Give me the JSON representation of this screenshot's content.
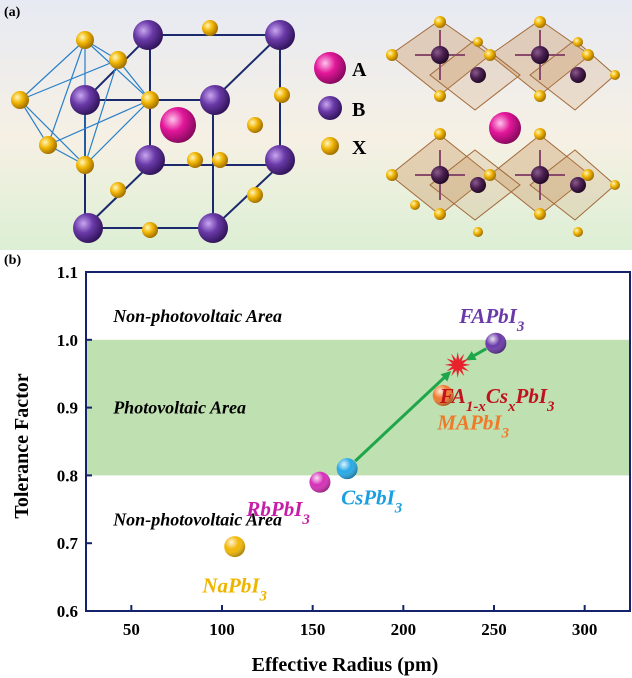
{
  "panel_a": {
    "label": "(a)",
    "legend": [
      {
        "symbol": "A",
        "color": "#e3179a"
      },
      {
        "symbol": "B",
        "color": "#6a3aa8"
      },
      {
        "symbol": "X",
        "color": "#f2b705"
      }
    ]
  },
  "panel_b_label": "(b)",
  "chart_data": {
    "type": "scatter",
    "xlabel": "Effective Radius (pm)",
    "ylabel": "Tolerance Factor",
    "xlim": [
      25,
      325
    ],
    "ylim": [
      0.6,
      1.1
    ],
    "xticks": [
      50,
      100,
      150,
      200,
      250,
      300
    ],
    "yticks": [
      0.6,
      0.7,
      0.8,
      0.9,
      1.0,
      1.1
    ],
    "xtick_labels": [
      "50",
      "100",
      "150",
      "200",
      "250",
      "300"
    ],
    "ytick_labels": [
      "0.6",
      "0.7",
      "0.8",
      "0.9",
      "1.0",
      "1.1"
    ],
    "bands": [
      {
        "label": "Photovoltaic Area",
        "from": 0.8,
        "to": 1.0,
        "color": "#bfe0b0"
      }
    ],
    "annotations": [
      {
        "text": "Non-photovoltaic Area",
        "x": 0.05,
        "y": 1.035
      },
      {
        "text": "Photovoltaic Area",
        "x": 0.05,
        "y": 0.9
      },
      {
        "text": "Non-photovoltaic Area",
        "x": 0.05,
        "y": 0.735
      }
    ],
    "points": [
      {
        "pre": "NaPbI",
        "sub": "3",
        "x": 107,
        "y": 0.695,
        "color": "#f2b705",
        "label_color": "#f0b400"
      },
      {
        "pre": "RbPbI",
        "sub": "3",
        "x": 154,
        "y": 0.79,
        "color": "#d62fb8",
        "label_color": "#c51fa8"
      },
      {
        "pre": "CsPbI",
        "sub": "3",
        "x": 169,
        "y": 0.81,
        "color": "#27a9e6",
        "label_color": "#1a9fe0"
      },
      {
        "pre": "MAPbI",
        "sub": "3",
        "x": 222,
        "y": 0.918,
        "color": "#f07a2e",
        "label_color": "#ef7a2a"
      },
      {
        "pre": "FAPbI",
        "sub": "3",
        "x": 251,
        "y": 0.995,
        "color": "#6a3aa8",
        "label_color": "#6a3aa8"
      }
    ],
    "star": {
      "label": "FA1-xCsxPbI3",
      "x": 230,
      "y": 0.963,
      "color": "#e8222d",
      "label_color": "#c0121e"
    },
    "arrows": [
      {
        "from": [
          169,
          0.81
        ],
        "to": [
          230,
          0.963
        ],
        "color": "#1fa64a"
      },
      {
        "from": [
          251,
          0.995
        ],
        "to": [
          230,
          0.963
        ],
        "color": "#1fa64a"
      }
    ]
  }
}
